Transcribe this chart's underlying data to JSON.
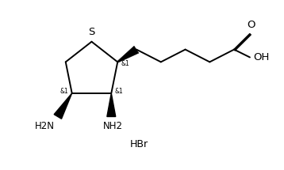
{
  "bg_color": "#ffffff",
  "line_color": "#000000",
  "line_width": 1.4,
  "font_size_label": 8.5,
  "font_size_small": 5.5,
  "font_size_hbr": 9.0,
  "S_label": "S",
  "O_label": "O",
  "OH_label": "OH",
  "NH2_left_label": "H2N",
  "NH2_right_label": "NH2",
  "stereo_label": "&1",
  "HBr_label": "HBr"
}
